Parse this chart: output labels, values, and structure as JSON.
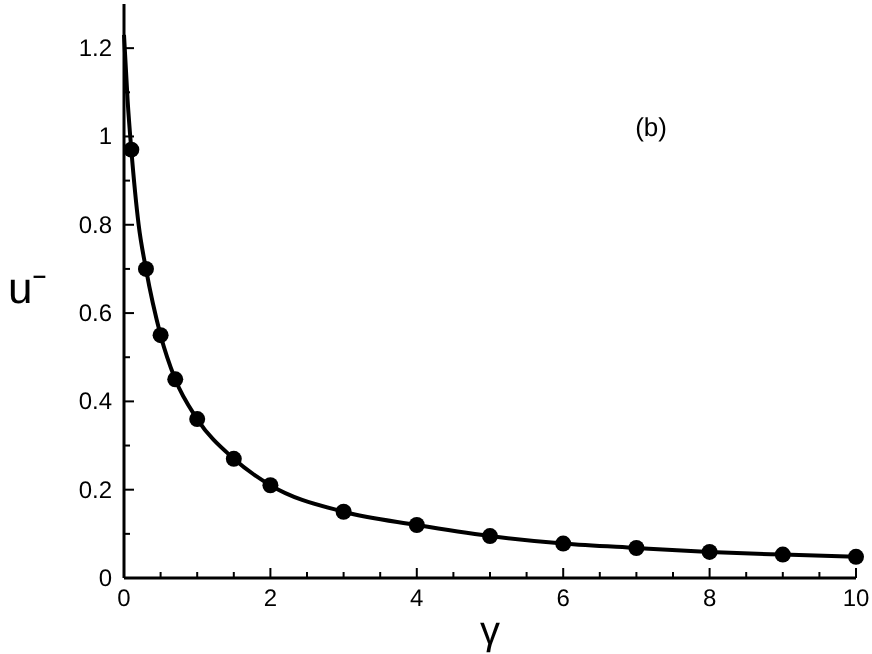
{
  "chart_data": {
    "type": "line",
    "xlabel": "γ",
    "ylabel": "u⁻",
    "annotations": [
      "(b)"
    ],
    "xlim": [
      0,
      10
    ],
    "ylim": [
      0,
      1.3
    ],
    "xticks": [
      0,
      {
        "value": 0.5,
        "label": null
      },
      2,
      {
        "value": 1,
        "label": null
      },
      {
        "value": 1.5,
        "label": null
      },
      {
        "value": 2.5,
        "label": null
      },
      {
        "value": 3,
        "label": null
      },
      {
        "value": 3.5,
        "label": null
      },
      4,
      {
        "value": 4.5,
        "label": null
      },
      {
        "value": 5,
        "label": null
      },
      {
        "value": 5.5,
        "label": null
      },
      6,
      {
        "value": 6.5,
        "label": null
      },
      {
        "value": 7,
        "label": null
      },
      {
        "value": 7.5,
        "label": null
      },
      8,
      {
        "value": 8.5,
        "label": null
      },
      {
        "value": 9,
        "label": null
      },
      {
        "value": 9.5,
        "label": null
      },
      10
    ],
    "yticks": [
      0,
      {
        "value": 0.1,
        "label": null
      },
      0.2,
      {
        "value": 0.3,
        "label": null
      },
      0.4,
      {
        "value": 0.5,
        "label": null
      },
      0.6,
      {
        "value": 0.7,
        "label": null
      },
      0.8,
      {
        "value": 0.9,
        "label": null
      },
      1,
      {
        "value": 1.1,
        "label": null
      },
      1.2
    ],
    "series": [
      {
        "color": "#000000",
        "marker": "none",
        "x": [
          0,
          0.05,
          0.1,
          0.2,
          0.3,
          0.5,
          0.7,
          1,
          1.5,
          2,
          3,
          4,
          5,
          6,
          7,
          8,
          9,
          10
        ],
        "values": [
          1.23,
          1.08,
          0.97,
          0.8,
          0.7,
          0.55,
          0.45,
          0.36,
          0.27,
          0.21,
          0.15,
          0.12,
          0.095,
          0.078,
          0.068,
          0.059,
          0.053,
          0.048
        ]
      },
      {
        "type": "scatter",
        "color": "#000000",
        "marker": "circle",
        "x": [
          0.1,
          0.3,
          0.5,
          0.7,
          1,
          1.5,
          2,
          3,
          4,
          5,
          6,
          7,
          8,
          9,
          10
        ],
        "values": [
          0.97,
          0.7,
          0.55,
          0.45,
          0.36,
          0.27,
          0.21,
          0.15,
          0.12,
          0.095,
          0.078,
          0.068,
          0.059,
          0.053,
          0.048
        ]
      }
    ]
  }
}
